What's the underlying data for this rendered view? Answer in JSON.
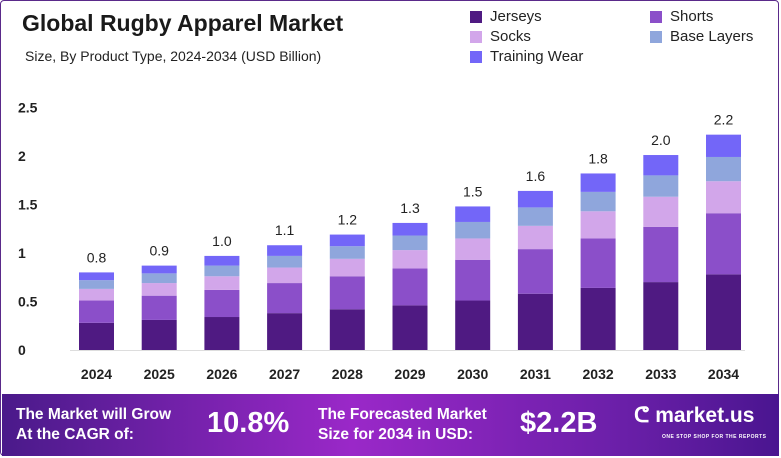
{
  "title": "Global Rugby Apparel Market",
  "subtitle": "Size, By Product Type, 2024-2034 (USD Billion)",
  "chart_data": {
    "type": "bar",
    "stacked": true,
    "categories": [
      "2024",
      "2025",
      "2026",
      "2027",
      "2028",
      "2029",
      "2030",
      "2031",
      "2032",
      "2033",
      "2034"
    ],
    "series": [
      {
        "name": "Jerseys",
        "color": "#4f1a82",
        "values": [
          0.28,
          0.31,
          0.34,
          0.38,
          0.42,
          0.46,
          0.51,
          0.58,
          0.64,
          0.7,
          0.78
        ]
      },
      {
        "name": "Shorts",
        "color": "#8b4fc9",
        "values": [
          0.23,
          0.25,
          0.28,
          0.31,
          0.34,
          0.38,
          0.42,
          0.46,
          0.51,
          0.57,
          0.63
        ]
      },
      {
        "name": "Socks",
        "color": "#d2a6ea",
        "values": [
          0.12,
          0.13,
          0.14,
          0.16,
          0.18,
          0.19,
          0.22,
          0.24,
          0.28,
          0.31,
          0.33
        ]
      },
      {
        "name": "Base Layers",
        "color": "#8fa6dc",
        "values": [
          0.09,
          0.1,
          0.11,
          0.12,
          0.13,
          0.15,
          0.17,
          0.19,
          0.2,
          0.22,
          0.25
        ]
      },
      {
        "name": "Training Wear",
        "color": "#7366f8",
        "values": [
          0.08,
          0.08,
          0.1,
          0.11,
          0.12,
          0.13,
          0.16,
          0.17,
          0.19,
          0.21,
          0.23
        ]
      }
    ],
    "totals_labels": [
      "0.8",
      "0.9",
      "1.0",
      "1.1",
      "1.2",
      "1.3",
      "1.5",
      "1.6",
      "1.8",
      "2.0",
      "2.2"
    ],
    "yticks": [
      "0",
      "0.5",
      "1",
      "1.5",
      "2",
      "2.5"
    ],
    "ylim": [
      0,
      2.5
    ],
    "grid": false,
    "legend": "top-right"
  },
  "footer": {
    "cagr_text_1": "The Market will Grow",
    "cagr_text_2": "At the CAGR of:",
    "cagr_value": "10.8%",
    "forecast_text_1": "The Forecasted Market",
    "forecast_text_2": "Size for 2034 in USD:",
    "forecast_value": "$2.2B",
    "brand": "market.us",
    "brand_tagline": "ONE STOP SHOP FOR THE REPORTS"
  }
}
